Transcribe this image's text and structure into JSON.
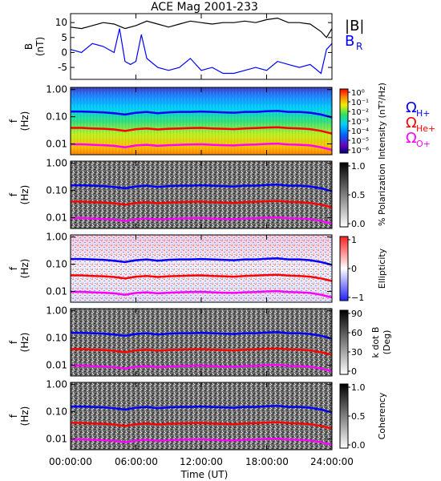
{
  "title": "ACE Mag 2001-233",
  "xlabel": "Time (UT)",
  "xticks": [
    "00:00:00",
    "06:00:00",
    "12:00:00",
    "18:00:00",
    "24:00:00"
  ],
  "legend_b": {
    "total": "|B|",
    "radial": "B",
    "radial_sub": "R"
  },
  "legend_gyro": [
    {
      "symbol": "Ω",
      "sub": "H+",
      "color": "#0000ff"
    },
    {
      "symbol": "Ω",
      "sub": "He+",
      "color": "#ff0000"
    },
    {
      "symbol": "Ω",
      "sub": "O+",
      "color": "#ff00ff"
    }
  ],
  "colors": {
    "total_b": "#000000",
    "radial_b": "#0000ff",
    "h_gyro": "#0000ff",
    "he_gyro": "#ff0000",
    "o_gyro": "#ff00ff"
  },
  "chart_data": [
    {
      "type": "line",
      "ylabel": "B",
      "yunit": "(nT)",
      "yticks": [
        "10",
        "5",
        "0",
        "-5"
      ],
      "ylim": [
        -9,
        13
      ],
      "xlim": [
        0,
        24
      ],
      "grid": false,
      "series": [
        {
          "name": "|B|",
          "x": [
            0,
            1,
            2,
            3,
            4,
            5,
            6,
            7,
            8,
            9,
            10,
            11,
            12,
            13,
            14,
            15,
            16,
            17,
            18,
            19,
            20,
            21,
            22,
            23,
            23.5,
            24
          ],
          "values": [
            8.5,
            8,
            9,
            10,
            9.5,
            8,
            9,
            10.5,
            9.5,
            8.5,
            9.5,
            10.5,
            10,
            9.5,
            10,
            10,
            10.5,
            10,
            11,
            11.5,
            10,
            10,
            9.5,
            7,
            5,
            8
          ]
        },
        {
          "name": "BR",
          "x": [
            0,
            1,
            2,
            3,
            4,
            4.5,
            5,
            5.5,
            6,
            6.5,
            7,
            8,
            9,
            10,
            11,
            12,
            13,
            14,
            15,
            16,
            17,
            18,
            19,
            20,
            21,
            22,
            23,
            23.5,
            24
          ],
          "values": [
            1,
            0,
            3,
            2,
            0,
            8,
            -3,
            -4,
            -3,
            6,
            -2,
            -5,
            -6,
            -5,
            -2,
            -6,
            -5,
            -7,
            -7,
            -6,
            -5,
            -6,
            -3,
            -4,
            -5,
            -4,
            -7,
            1,
            3
          ]
        }
      ]
    },
    {
      "type": "heatmap",
      "ylabel": "f",
      "yunit": "(Hz)",
      "yticks": [
        "1.00",
        "0.10",
        "0.01"
      ],
      "ylim": [
        0.004,
        1.2
      ],
      "yscale": "log",
      "cbar_label": "Intensity (nT²/Hz)",
      "cbar_ticks": [
        "10⁰",
        "10⁻¹",
        "10⁻²",
        "10⁻³",
        "10⁻⁴",
        "10⁻⁵",
        "10⁻⁶"
      ],
      "series": [
        {
          "name": "ΩH+",
          "x": [
            0,
            1,
            2,
            3,
            4,
            5,
            6,
            7,
            8,
            9,
            10,
            11,
            12,
            13,
            14,
            15,
            16,
            17,
            18,
            19,
            20,
            21,
            22,
            23,
            24
          ],
          "values": [
            0.155,
            0.155,
            0.15,
            0.145,
            0.135,
            0.12,
            0.14,
            0.15,
            0.135,
            0.145,
            0.15,
            0.15,
            0.155,
            0.15,
            0.145,
            0.14,
            0.15,
            0.15,
            0.16,
            0.165,
            0.15,
            0.15,
            0.14,
            0.12,
            0.095
          ]
        },
        {
          "name": "ΩHe+",
          "x": [
            0,
            1,
            2,
            3,
            4,
            5,
            6,
            7,
            8,
            9,
            10,
            11,
            12,
            13,
            14,
            15,
            16,
            17,
            18,
            19,
            20,
            21,
            22,
            23,
            24
          ],
          "values": [
            0.039,
            0.039,
            0.037,
            0.036,
            0.034,
            0.03,
            0.035,
            0.037,
            0.034,
            0.036,
            0.037,
            0.038,
            0.039,
            0.037,
            0.036,
            0.035,
            0.037,
            0.038,
            0.04,
            0.041,
            0.038,
            0.037,
            0.035,
            0.03,
            0.024
          ]
        },
        {
          "name": "ΩO+",
          "x": [
            0,
            1,
            2,
            3,
            4,
            5,
            6,
            7,
            8,
            9,
            10,
            11,
            12,
            13,
            14,
            15,
            16,
            17,
            18,
            19,
            20,
            21,
            22,
            23,
            24
          ],
          "values": [
            0.0097,
            0.0097,
            0.0093,
            0.009,
            0.0085,
            0.0075,
            0.0088,
            0.0093,
            0.0085,
            0.009,
            0.0093,
            0.0095,
            0.0097,
            0.0093,
            0.009,
            0.0088,
            0.0093,
            0.0095,
            0.01,
            0.0103,
            0.0095,
            0.0093,
            0.0088,
            0.0075,
            0.006
          ]
        }
      ]
    },
    {
      "type": "heatmap",
      "ylabel": "f",
      "yunit": "(Hz)",
      "yticks": [
        "1.00",
        "0.10",
        "0.01"
      ],
      "ylim": [
        0.004,
        1.2
      ],
      "yscale": "log",
      "cbar_label": "% Polarization",
      "cbar_ticks": [
        "1.0",
        "0.5",
        "0.0"
      ],
      "series_ref": "gyrofrequencies"
    },
    {
      "type": "heatmap",
      "ylabel": "f",
      "yunit": "(Hz)",
      "yticks": [
        "1.00",
        "0.10",
        "0.01"
      ],
      "ylim": [
        0.004,
        1.2
      ],
      "yscale": "log",
      "cbar_label": "Ellipticity",
      "cbar_ticks": [
        "1",
        "0",
        "−1"
      ],
      "series_ref": "gyrofrequencies"
    },
    {
      "type": "heatmap",
      "ylabel": "f",
      "yunit": "(Hz)",
      "yticks": [
        "1.00",
        "0.10",
        "0.01"
      ],
      "ylim": [
        0.004,
        1.2
      ],
      "yscale": "log",
      "cbar_label": "k dot B",
      "cbar_unit": "(Deg)",
      "cbar_ticks": [
        "90",
        "60",
        "30",
        "0"
      ],
      "series_ref": "gyrofrequencies"
    },
    {
      "type": "heatmap",
      "ylabel": "f",
      "yunit": "(Hz)",
      "yticks": [
        "1.00",
        "0.10",
        "0.01"
      ],
      "ylim": [
        0.004,
        1.2
      ],
      "yscale": "log",
      "cbar_label": "Coherency",
      "cbar_ticks": [
        "1.0",
        "0.5",
        "0.0"
      ],
      "series_ref": "gyrofrequencies"
    }
  ]
}
